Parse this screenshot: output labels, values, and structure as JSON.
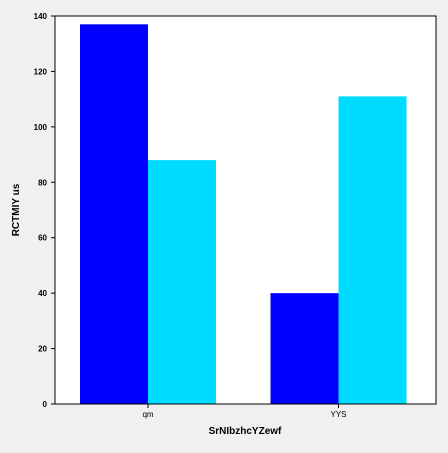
{
  "chart_data": {
    "type": "bar",
    "title": "",
    "xlabel": "SrNIbzhcYZewf",
    "ylabel": "RCTMIY us",
    "categories": [
      "qm",
      "YYS"
    ],
    "series": [
      {
        "values": [
          137,
          40
        ]
      },
      {
        "values": [
          88,
          111
        ]
      }
    ],
    "ylim": [
      0,
      140
    ],
    "yticks": [
      0,
      20,
      40,
      60,
      80,
      100,
      120,
      140
    ],
    "grid": false,
    "legend": "none",
    "colors": [
      "#0000ff",
      "#00dcff"
    ],
    "background": "#f0f0f0",
    "plot_background": "#ffffff"
  }
}
